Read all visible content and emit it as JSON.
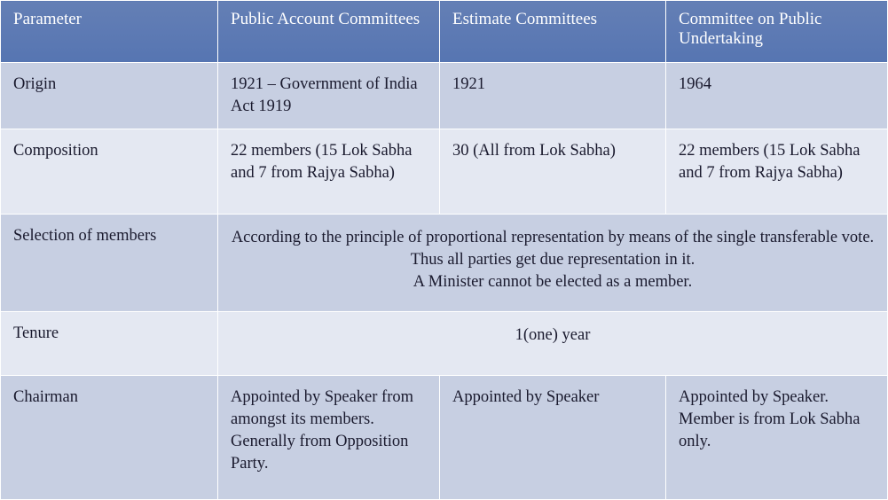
{
  "table": {
    "columns": [
      "Parameter",
      "Public Account Committees",
      "Estimate Committees",
      "Committee on Public Undertaking"
    ],
    "rows": {
      "origin": {
        "param": "Origin",
        "pac": "1921 – Government of India Act 1919",
        "ec": "1921",
        "copu": "1964"
      },
      "composition": {
        "param": "Composition",
        "pac": "22 members (15 Lok Sabha and 7 from Rajya Sabha)",
        "ec": "30 (All from Lok Sabha)",
        "copu": "22 members (15 Lok Sabha and 7 from Rajya Sabha)"
      },
      "selection": {
        "param": "Selection of members",
        "merged_line1": "According to the principle of proportional representation by means of the single transferable vote.  Thus all parties get due representation in it.",
        "merged_line2": "A Minister cannot be elected as a member."
      },
      "tenure": {
        "param": "Tenure",
        "merged": "1(one) year"
      },
      "chairman": {
        "param": "Chairman",
        "pac": "Appointed by Speaker from amongst its members. Generally from Opposition Party.",
        "ec": "Appointed by Speaker",
        "copu": "Appointed by Speaker. Member is from Lok Sabha only."
      }
    },
    "style": {
      "header_bg": "#5b7bb4",
      "header_text": "#ffffff",
      "row_odd_bg": "#c7cfe2",
      "row_even_bg": "#e4e8f2",
      "cell_text": "#1a1a2e",
      "border_color": "#ffffff",
      "font_family": "Georgia",
      "header_fontsize_pt": 14,
      "body_fontsize_pt": 14
    }
  }
}
